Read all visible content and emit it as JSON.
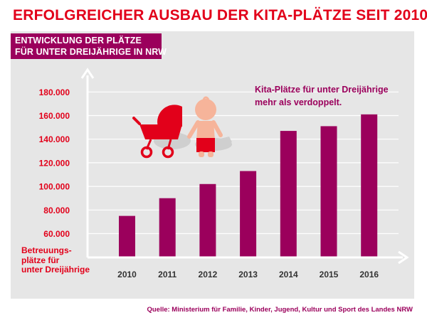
{
  "header": {
    "title": "ERFOLGREICHER AUSBAU DER KITA-PLÄTZE SEIT 2010",
    "subtitle_line1": "ENTWICKLUNG DER PLÄTZE",
    "subtitle_line2": "FÜR UNTER DREIJÄHRIGE IN NRW"
  },
  "annotation": {
    "line1": "Kita-Plätze für unter Dreijährige",
    "line2": "mehr als verdoppelt."
  },
  "source": "Quelle: Ministerium für Familie, Kinder, Jugend, Kultur und Sport des Landes NRW",
  "colors": {
    "bar": "#9b005c",
    "accent_red": "#e2001a",
    "panel": "#e6e6e6"
  },
  "icons": [
    "stroller-icon",
    "toddler-icon"
  ],
  "chart_data": {
    "type": "bar",
    "title": "ERFOLGREICHER AUSBAU DER KITA-PLÄTZE SEIT 2010",
    "subtitle": "ENTWICKLUNG DER PLÄTZE FÜR UNTER DREIJÄHRIGE IN NRW",
    "ylabel_line1": "Betreuungs-",
    "ylabel_line2": "plätze für",
    "ylabel_line3": "unter Dreijährige",
    "xlabel": "",
    "categories": [
      "2010",
      "2011",
      "2012",
      "2013",
      "2014",
      "2015",
      "2016"
    ],
    "values": [
      75000,
      90000,
      102000,
      113000,
      147000,
      151000,
      161000
    ],
    "y_ticks": [
      "60.000",
      "80.000",
      "100.000",
      "120.000",
      "140.000",
      "160.000",
      "180.000"
    ],
    "y_tick_values": [
      60000,
      80000,
      100000,
      120000,
      140000,
      160000,
      180000
    ],
    "ylim": [
      50000,
      190000
    ],
    "grid": true,
    "legend": "none"
  }
}
